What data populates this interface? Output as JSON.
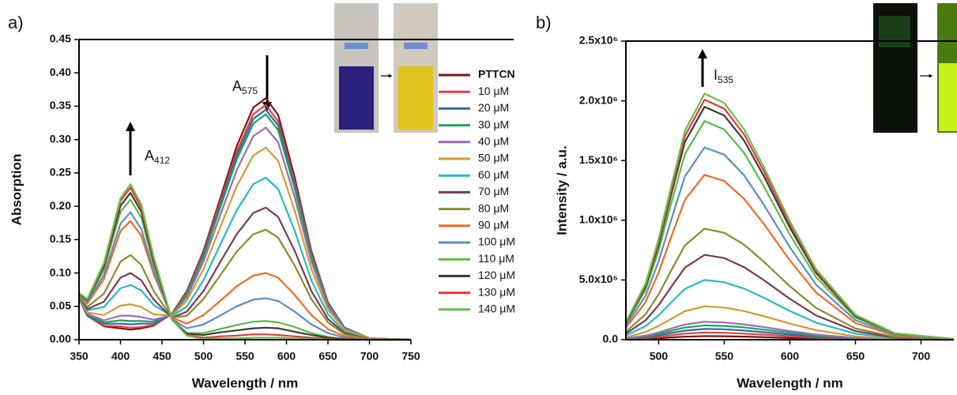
{
  "chart_data": [
    {
      "type": "line",
      "label": "a)",
      "x_label": "Wavelength / nm",
      "y_label": "Absorption",
      "xlim": [
        350,
        750
      ],
      "xticks": [
        350,
        400,
        450,
        500,
        550,
        600,
        650,
        700,
        750
      ],
      "ylim": [
        0,
        0.45
      ],
      "yticks": [
        {
          "value": 0,
          "label": "0.00"
        },
        {
          "value": 0.05,
          "label": "0.05"
        },
        {
          "value": 0.1,
          "label": "0.10"
        },
        {
          "value": 0.15,
          "label": "0.15"
        },
        {
          "value": 0.2,
          "label": "0.20"
        },
        {
          "value": 0.25,
          "label": "0.25"
        },
        {
          "value": 0.3,
          "label": "0.30"
        },
        {
          "value": 0.35,
          "label": "0.35"
        },
        {
          "value": 0.4,
          "label": "0.40"
        },
        {
          "value": 0.45,
          "label": "0.45"
        }
      ],
      "legend": "right",
      "annotations": [
        {
          "text": "A",
          "subscript": "412"
        },
        {
          "text": "A",
          "subscript": "575"
        }
      ],
      "x": [
        350,
        360,
        380,
        400,
        412,
        425,
        440,
        462,
        480,
        500,
        520,
        540,
        560,
        575,
        590,
        610,
        630,
        650,
        670,
        700,
        750
      ],
      "series": [
        {
          "name": "PTTCN",
          "color": "#7a1414",
          "values": [
            0.061,
            0.036,
            0.02,
            0.017,
            0.015,
            0.017,
            0.021,
            0.039,
            0.073,
            0.133,
            0.211,
            0.29,
            0.348,
            0.362,
            0.337,
            0.243,
            0.133,
            0.056,
            0.018,
            0.002,
            0
          ]
        },
        {
          "name": "10 μM",
          "color": "#e8403c",
          "values": [
            0.061,
            0.037,
            0.021,
            0.02,
            0.018,
            0.019,
            0.022,
            0.038,
            0.071,
            0.13,
            0.206,
            0.282,
            0.338,
            0.352,
            0.327,
            0.236,
            0.13,
            0.055,
            0.018,
            0.002,
            0
          ]
        },
        {
          "name": "20 μM",
          "color": "#2e6aad",
          "values": [
            0.061,
            0.037,
            0.024,
            0.024,
            0.023,
            0.024,
            0.024,
            0.038,
            0.069,
            0.127,
            0.201,
            0.276,
            0.331,
            0.345,
            0.321,
            0.231,
            0.127,
            0.054,
            0.018,
            0.002,
            0
          ]
        },
        {
          "name": "30 μM",
          "color": "#1fa25a",
          "values": [
            0.061,
            0.038,
            0.026,
            0.029,
            0.028,
            0.028,
            0.027,
            0.038,
            0.068,
            0.124,
            0.197,
            0.27,
            0.324,
            0.338,
            0.314,
            0.226,
            0.124,
            0.053,
            0.017,
            0.002,
            0
          ]
        },
        {
          "name": "40 μM",
          "color": "#9b6cb5",
          "values": [
            0.061,
            0.039,
            0.029,
            0.036,
            0.036,
            0.034,
            0.03,
            0.037,
            0.064,
            0.117,
            0.186,
            0.254,
            0.305,
            0.318,
            0.296,
            0.213,
            0.117,
            0.05,
            0.016,
            0.002,
            0
          ]
        },
        {
          "name": "50 μM",
          "color": "#d19b2f",
          "values": [
            0.062,
            0.041,
            0.037,
            0.051,
            0.053,
            0.049,
            0.038,
            0.036,
            0.059,
            0.106,
            0.168,
            0.23,
            0.276,
            0.288,
            0.268,
            0.193,
            0.106,
            0.045,
            0.015,
            0.002,
            0
          ]
        },
        {
          "name": "60 μM",
          "color": "#27b9c4",
          "values": [
            0.063,
            0.044,
            0.049,
            0.077,
            0.082,
            0.074,
            0.052,
            0.035,
            0.05,
            0.089,
            0.142,
            0.194,
            0.233,
            0.243,
            0.226,
            0.163,
            0.089,
            0.038,
            0.012,
            0.001,
            0
          ]
        },
        {
          "name": "70 μM",
          "color": "#7a3a4e",
          "values": [
            0.064,
            0.046,
            0.057,
            0.093,
            0.1,
            0.089,
            0.06,
            0.033,
            0.042,
            0.073,
            0.116,
            0.158,
            0.19,
            0.198,
            0.184,
            0.133,
            0.073,
            0.031,
            0.01,
            0.001,
            0
          ]
        },
        {
          "name": "80 μM",
          "color": "#8a8a2e",
          "values": [
            0.065,
            0.049,
            0.069,
            0.117,
            0.127,
            0.112,
            0.073,
            0.033,
            0.036,
            0.061,
            0.096,
            0.132,
            0.158,
            0.165,
            0.153,
            0.111,
            0.061,
            0.026,
            0.008,
            0.001,
            0
          ]
        },
        {
          "name": "90 μM",
          "color": "#ee6a24",
          "values": [
            0.068,
            0.054,
            0.091,
            0.163,
            0.178,
            0.156,
            0.098,
            0.033,
            0.024,
            0.037,
            0.058,
            0.08,
            0.096,
            0.1,
            0.093,
            0.067,
            0.037,
            0.016,
            0.005,
            0.001,
            0
          ]
        },
        {
          "name": "100 μM",
          "color": "#5a8ec4",
          "values": [
            0.068,
            0.056,
            0.097,
            0.174,
            0.191,
            0.166,
            0.103,
            0.031,
            0.017,
            0.023,
            0.036,
            0.05,
            0.06,
            0.062,
            0.058,
            0.042,
            0.023,
            0.01,
            0.003,
            0,
            0
          ]
        },
        {
          "name": "110 μM",
          "color": "#5db846",
          "values": [
            0.069,
            0.058,
            0.105,
            0.192,
            0.21,
            0.183,
            0.112,
            0.03,
            0.01,
            0.01,
            0.016,
            0.022,
            0.027,
            0.028,
            0.026,
            0.019,
            0.01,
            0.004,
            0.001,
            0,
            0
          ]
        },
        {
          "name": "120 μM",
          "color": "#3a3a3a",
          "values": [
            0.069,
            0.059,
            0.11,
            0.201,
            0.22,
            0.192,
            0.117,
            0.03,
            0.009,
            0.007,
            0.011,
            0.014,
            0.017,
            0.018,
            0.017,
            0.012,
            0.007,
            0.003,
            0.001,
            0,
            0
          ]
        },
        {
          "name": "130 μM",
          "color": "#e53a3a",
          "values": [
            0.07,
            0.06,
            0.113,
            0.208,
            0.228,
            0.198,
            0.121,
            0.03,
            0.007,
            0.003,
            0.005,
            0.006,
            0.008,
            0.008,
            0.007,
            0.005,
            0.003,
            0.001,
            0,
            0,
            0
          ]
        },
        {
          "name": "140 μM",
          "color": "#66c04a",
          "values": [
            0.07,
            0.061,
            0.115,
            0.212,
            0.233,
            0.203,
            0.124,
            0.03,
            0.006,
            0.001,
            0.002,
            0.002,
            0.003,
            0.003,
            0.003,
            0.002,
            0.001,
            0,
            0,
            0,
            0
          ]
        }
      ]
    },
    {
      "type": "line",
      "label": "b)",
      "x_label": "Wavelength / nm",
      "y_label": "Intensity  / a.u.",
      "xlim": [
        475,
        725
      ],
      "xticks": [
        500,
        550,
        600,
        650,
        700
      ],
      "ylim": [
        0,
        2500000
      ],
      "yticks": [
        {
          "value": 0,
          "label": "0.0"
        },
        {
          "value": 500000,
          "label": "5.0x10⁵"
        },
        {
          "value": 1000000,
          "label": "1.0x10⁶"
        },
        {
          "value": 1500000,
          "label": "1.5x10⁶"
        },
        {
          "value": 2000000,
          "label": "2.0x10⁶"
        },
        {
          "value": 2500000,
          "label": "2.5x10⁶"
        }
      ],
      "annotations": [
        {
          "text": "I",
          "subscript": "535"
        }
      ],
      "x": [
        475,
        490,
        500,
        510,
        520,
        535,
        550,
        565,
        580,
        600,
        620,
        650,
        680,
        725
      ],
      "series": [
        {
          "color": "#7a1414",
          "values": [
            2000,
            7000,
            12000,
            19000,
            25000,
            30000,
            29000,
            26000,
            21000,
            14000,
            9000,
            3000,
            1000,
            0
          ]
        },
        {
          "color": "#e8403c",
          "values": [
            4000,
            14000,
            25000,
            38000,
            51000,
            60000,
            58000,
            51000,
            42000,
            29000,
            17000,
            6000,
            2000,
            0
          ]
        },
        {
          "color": "#2e6aad",
          "values": [
            6000,
            21000,
            37000,
            57000,
            76000,
            90000,
            87000,
            77000,
            63000,
            43000,
            26000,
            9000,
            2000,
            0
          ]
        },
        {
          "color": "#1fa25a",
          "values": [
            9000,
            27000,
            49000,
            76000,
            102000,
            120000,
            115000,
            103000,
            84000,
            58000,
            34000,
            12000,
            3000,
            0
          ]
        },
        {
          "color": "#9b6cb5",
          "values": [
            11000,
            34000,
            61000,
            95000,
            127000,
            150000,
            144000,
            128000,
            106000,
            72000,
            43000,
            15000,
            4000,
            0
          ]
        },
        {
          "color": "#d19b2f",
          "values": [
            20000,
            64000,
            115000,
            177000,
            238000,
            280000,
            269000,
            240000,
            197000,
            135000,
            80000,
            28000,
            7000,
            1000
          ]
        },
        {
          "color": "#27b9c4",
          "values": [
            36000,
            114000,
            205000,
            317000,
            425000,
            500000,
            481000,
            428000,
            352000,
            241000,
            143000,
            51000,
            13000,
            2000
          ]
        },
        {
          "color": "#7a3a4e",
          "values": [
            51000,
            162000,
            290000,
            449000,
            603000,
            710000,
            683000,
            608000,
            500000,
            342000,
            203000,
            72000,
            18000,
            2000
          ]
        },
        {
          "color": "#8a8a2e",
          "values": [
            67000,
            212000,
            380000,
            589000,
            790000,
            930000,
            895000,
            796000,
            655000,
            447000,
            266000,
            94000,
            24000,
            3000
          ]
        },
        {
          "color": "#ee6a24",
          "values": [
            99000,
            315000,
            564000,
            874000,
            1172000,
            1380000,
            1328000,
            1181000,
            972000,
            664000,
            395000,
            139000,
            36000,
            4000
          ]
        },
        {
          "color": "#5a8ec4",
          "values": [
            116000,
            367000,
            658000,
            1019000,
            1367000,
            1610000,
            1549000,
            1378000,
            1133000,
            774000,
            460000,
            163000,
            42000,
            5000
          ]
        },
        {
          "color": "#5db846",
          "values": [
            132000,
            417000,
            748000,
            1158000,
            1554000,
            1830000,
            1760000,
            1566000,
            1288000,
            880000,
            523000,
            185000,
            48000,
            5000
          ]
        },
        {
          "color": "#3a3a3a",
          "values": [
            140000,
            445000,
            798000,
            1234000,
            1656000,
            1950000,
            1876000,
            1669000,
            1373000,
            938000,
            558000,
            197000,
            51000,
            6000
          ]
        },
        {
          "color": "#e53a3a",
          "values": [
            145000,
            458000,
            822000,
            1272000,
            1706000,
            2010000,
            1934000,
            1721000,
            1415000,
            967000,
            575000,
            203000,
            52000,
            6000
          ]
        },
        {
          "color": "#66c04a",
          "values": [
            148000,
            470000,
            843000,
            1304000,
            1749000,
            2060000,
            1982000,
            1763000,
            1450000,
            991000,
            589000,
            208000,
            54000,
            6000
          ]
        }
      ]
    }
  ]
}
